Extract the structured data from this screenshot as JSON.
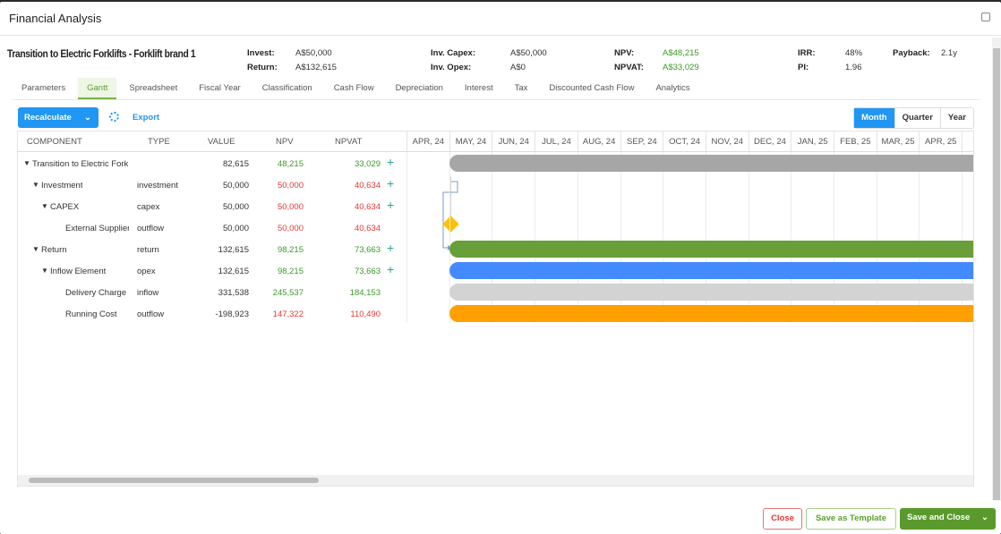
{
  "window": {
    "title": "Financial Analysis"
  },
  "project": {
    "title": "Transition to Electric Forklifts - Forklift brand 1"
  },
  "summary": {
    "invest_label": "Invest:",
    "invest": "A$50,000",
    "return_label": "Return:",
    "return": "A$132,615",
    "inv_capex_label": "Inv. Capex:",
    "inv_capex": "A$50,000",
    "inv_opex_label": "Inv. Opex:",
    "inv_opex": "A$0",
    "npv_label": "NPV:",
    "npv": "A$48,215",
    "npvat_label": "NPVAT:",
    "npvat": "A$33,029",
    "irr_label": "IRR:",
    "irr": "48%",
    "pi_label": "PI:",
    "pi": "1.96",
    "payback_label": "Payback:",
    "payback": "2.1y"
  },
  "tabs": [
    "Parameters",
    "Gantt",
    "Spreadsheet",
    "Fiscal Year",
    "Classification",
    "Cash Flow",
    "Depreciation",
    "Interest",
    "Tax",
    "Discounted Cash Flow",
    "Analytics"
  ],
  "toolbar": {
    "recalculate": "Recalculate",
    "export": "Export",
    "views": [
      "Month",
      "Quarter",
      "Year"
    ]
  },
  "columns": [
    "COMPONENT",
    "TYPE",
    "VALUE",
    "NPV",
    "NPVAT"
  ],
  "months": [
    "APR, 24",
    "MAY, 24",
    "JUN, 24",
    "JUL, 24",
    "AUG, 24",
    "SEP, 24",
    "OCT, 24",
    "NOV, 24",
    "DEC, 24",
    "JAN, 25",
    "FEB, 25",
    "MAR, 25",
    "APR, 25",
    "M"
  ],
  "rows": [
    {
      "name": "Transition to Electric Fork",
      "type": "",
      "value": "82,615",
      "npv": "48,215",
      "npvat": "33,029"
    },
    {
      "name": "Investment",
      "type": "investment",
      "value": "50,000",
      "npv": "50,000",
      "npvat": "40,634"
    },
    {
      "name": "CAPEX",
      "type": "capex",
      "value": "50,000",
      "npv": "50,000",
      "npvat": "40,634"
    },
    {
      "name": "External Supplier",
      "type": "outflow",
      "value": "50,000",
      "npv": "50,000",
      "npvat": "40,634"
    },
    {
      "name": "Return",
      "type": "return",
      "value": "132,615",
      "npv": "98,215",
      "npvat": "73,663"
    },
    {
      "name": "Inflow Element",
      "type": "opex",
      "value": "132,615",
      "npv": "98,215",
      "npvat": "73,663"
    },
    {
      "name": "Delivery Charge",
      "type": "inflow",
      "value": "331,538",
      "npv": "245,537",
      "npvat": "184,153"
    },
    {
      "name": "Running Cost",
      "type": "outflow",
      "value": "-198,923",
      "npv": "147,322",
      "npvat": "110,490"
    }
  ],
  "footer": {
    "close": "Close",
    "save_template": "Save as Template",
    "save_close": "Save and Close"
  }
}
